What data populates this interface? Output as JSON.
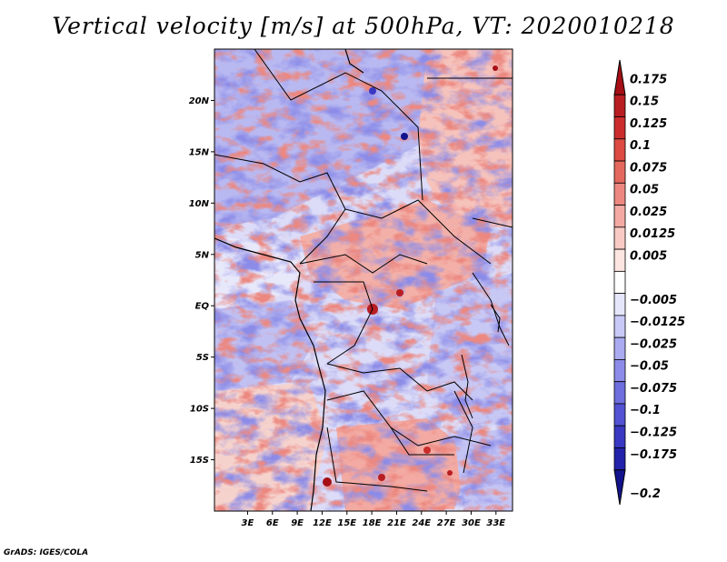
{
  "title": "Vertical velocity [m/s] at 500hPa, VT: 2020010218",
  "credit": "GrADS: IGES/COLA",
  "map": {
    "lon_range": [
      -1,
      35
    ],
    "lat_range": [
      -20,
      25
    ],
    "lat_ticks": [
      {
        "value": 20,
        "label": "20N"
      },
      {
        "value": 15,
        "label": "15N"
      },
      {
        "value": 10,
        "label": "10N"
      },
      {
        "value": 5,
        "label": "5N"
      },
      {
        "value": 0,
        "label": "EQ"
      },
      {
        "value": -5,
        "label": "5S"
      },
      {
        "value": -10,
        "label": "10S"
      },
      {
        "value": -15,
        "label": "15S"
      }
    ],
    "lon_ticks": [
      {
        "value": 3,
        "label": "3E"
      },
      {
        "value": 6,
        "label": "6E"
      },
      {
        "value": 9,
        "label": "9E"
      },
      {
        "value": 12,
        "label": "12E"
      },
      {
        "value": 15,
        "label": "15E"
      },
      {
        "value": 18,
        "label": "18E"
      },
      {
        "value": 21,
        "label": "21E"
      },
      {
        "value": 24,
        "label": "24E"
      },
      {
        "value": 27,
        "label": "27E"
      },
      {
        "value": 30,
        "label": "30E"
      },
      {
        "value": 33,
        "label": "33E"
      }
    ]
  },
  "colorbar": {
    "entries": [
      {
        "label": "0.175",
        "color": "#a50f15"
      },
      {
        "label": "0.15",
        "color": "#b81d22"
      },
      {
        "label": "0.125",
        "color": "#cb2d2d"
      },
      {
        "label": "0.1",
        "color": "#dc4a42"
      },
      {
        "label": "0.075",
        "color": "#e4685d"
      },
      {
        "label": "0.05",
        "color": "#ec8880"
      },
      {
        "label": "0.025",
        "color": "#f4aaa3"
      },
      {
        "label": "0.0125",
        "color": "#f9cac4"
      },
      {
        "label": "0.005",
        "color": "#fde6e2"
      },
      {
        "label": "",
        "color": "#ffffff"
      },
      {
        "label": "−0.005",
        "color": "#e6e6fb"
      },
      {
        "label": "−0.0125",
        "color": "#c9c9f6"
      },
      {
        "label": "−0.025",
        "color": "#aaaaf0"
      },
      {
        "label": "−0.05",
        "color": "#8c8ce8"
      },
      {
        "label": "−0.075",
        "color": "#6e6ede"
      },
      {
        "label": "−0.1",
        "color": "#5252d2"
      },
      {
        "label": "−0.125",
        "color": "#3838c2"
      },
      {
        "label": "−0.175",
        "color": "#2222aa"
      },
      {
        "label": "−0.2",
        "color": "#13138c"
      }
    ]
  },
  "colors": {
    "positive_mid": "#f4aaa3",
    "negative_mid": "#aaaaf0",
    "border": "#000000"
  }
}
